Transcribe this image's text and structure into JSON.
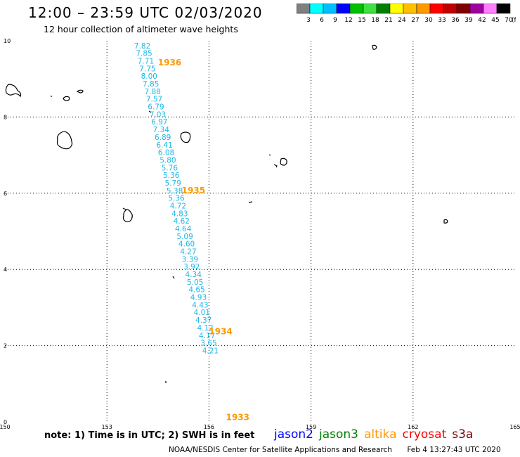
{
  "header": {
    "title": "12:00 – 23:59 UTC 02/03/2020",
    "subtitle": "12 hour collection of altimeter wave heights"
  },
  "colorbar": {
    "unit": "(ft)",
    "colors": [
      "#808080",
      "#00ffff",
      "#00c0ff",
      "#0000ff",
      "#00c000",
      "#40e040",
      "#008000",
      "#ffff00",
      "#ffc000",
      "#ff9900",
      "#ff0000",
      "#c00000",
      "#800000",
      "#a000a0",
      "#ff80ff",
      "#000000"
    ],
    "labels": [
      "3",
      "6",
      "9",
      "12",
      "15",
      "18",
      "21",
      "24",
      "27",
      "30",
      "33",
      "36",
      "39",
      "42",
      "45",
      "70"
    ]
  },
  "map": {
    "x_ticks": [
      "150",
      "153",
      "156",
      "159",
      "162",
      "165"
    ],
    "y_ticks": [
      "0",
      "2",
      "4",
      "6",
      "8",
      "10"
    ],
    "xlim": [
      150,
      165
    ],
    "ylim": [
      0,
      10
    ],
    "grid": true
  },
  "track": {
    "color": "#1fb8e8",
    "values": [
      "7.82",
      "7.85",
      "7.71",
      "7.75",
      "8.00",
      "7.85",
      "7.88",
      "7.57",
      "6.79",
      "7.03",
      "6.97",
      "7.34",
      "6.89",
      "6.41",
      "6.08",
      "5.80",
      "5.76",
      "5.36",
      "5.79",
      "5.38",
      "5.36",
      "4.72",
      "4.83",
      "4.62",
      "4.64",
      "5.09",
      "4.60",
      "4.27",
      "3.39",
      "3.92",
      "4.34",
      "5.05",
      "4.65",
      "4.93",
      "4.43",
      "4.01",
      "4.37",
      "4.12",
      "4.17",
      "3.65",
      "4.21"
    ],
    "points": [
      {
        "lon": 153.8,
        "lat": 9.8
      },
      {
        "lon": 153.85,
        "lat": 9.6
      },
      {
        "lon": 153.9,
        "lat": 9.4
      },
      {
        "lon": 153.95,
        "lat": 9.2
      },
      {
        "lon": 154.0,
        "lat": 9.0
      },
      {
        "lon": 154.05,
        "lat": 8.8
      },
      {
        "lon": 154.1,
        "lat": 8.6
      },
      {
        "lon": 154.15,
        "lat": 8.4
      },
      {
        "lon": 154.2,
        "lat": 8.2
      },
      {
        "lon": 154.25,
        "lat": 8.0
      },
      {
        "lon": 154.3,
        "lat": 7.8
      },
      {
        "lon": 154.35,
        "lat": 7.6
      },
      {
        "lon": 154.4,
        "lat": 7.4
      },
      {
        "lon": 154.45,
        "lat": 7.2
      },
      {
        "lon": 154.5,
        "lat": 7.0
      },
      {
        "lon": 154.55,
        "lat": 6.8
      },
      {
        "lon": 154.6,
        "lat": 6.6
      },
      {
        "lon": 154.65,
        "lat": 6.4
      },
      {
        "lon": 154.7,
        "lat": 6.2
      },
      {
        "lon": 154.75,
        "lat": 6.0
      },
      {
        "lon": 154.8,
        "lat": 5.8
      },
      {
        "lon": 154.85,
        "lat": 5.6
      },
      {
        "lon": 154.9,
        "lat": 5.4
      },
      {
        "lon": 154.95,
        "lat": 5.2
      },
      {
        "lon": 155.0,
        "lat": 5.0
      },
      {
        "lon": 155.05,
        "lat": 4.8
      },
      {
        "lon": 155.1,
        "lat": 4.6
      },
      {
        "lon": 155.15,
        "lat": 4.4
      },
      {
        "lon": 155.2,
        "lat": 4.2
      },
      {
        "lon": 155.25,
        "lat": 4.0
      },
      {
        "lon": 155.3,
        "lat": 3.8
      },
      {
        "lon": 155.35,
        "lat": 3.6
      },
      {
        "lon": 155.4,
        "lat": 3.4
      },
      {
        "lon": 155.45,
        "lat": 3.2
      },
      {
        "lon": 155.5,
        "lat": 3.0
      },
      {
        "lon": 155.55,
        "lat": 2.8
      },
      {
        "lon": 155.6,
        "lat": 2.6
      },
      {
        "lon": 155.65,
        "lat": 2.4
      },
      {
        "lon": 155.7,
        "lat": 2.2
      },
      {
        "lon": 155.75,
        "lat": 2.0
      },
      {
        "lon": 155.8,
        "lat": 1.8
      }
    ]
  },
  "time_labels": {
    "color": "#ff9900",
    "items": [
      {
        "text": "1936",
        "lon": 154.5,
        "lat": 9.35
      },
      {
        "text": "1935",
        "lon": 155.2,
        "lat": 6.0
      },
      {
        "text": "1934",
        "lon": 156.0,
        "lat": 2.3
      },
      {
        "text": "1933",
        "lon": 156.5,
        "lat": 0.05
      }
    ]
  },
  "footer": {
    "note": "note: 1) Time is in UTC; 2) SWH is in feet",
    "satellites": [
      {
        "name": "jason2",
        "color": "#0000ff"
      },
      {
        "name": "jason3",
        "color": "#008000"
      },
      {
        "name": "altika",
        "color": "#ff9900"
      },
      {
        "name": "cryosat",
        "color": "#ff0000"
      },
      {
        "name": "s3a",
        "color": "#800000"
      }
    ],
    "credit": "NOAA/NESDIS Center for Satellite Applications and Research",
    "timestamp": "Feb  4 13:27:43 UTC 2020"
  }
}
